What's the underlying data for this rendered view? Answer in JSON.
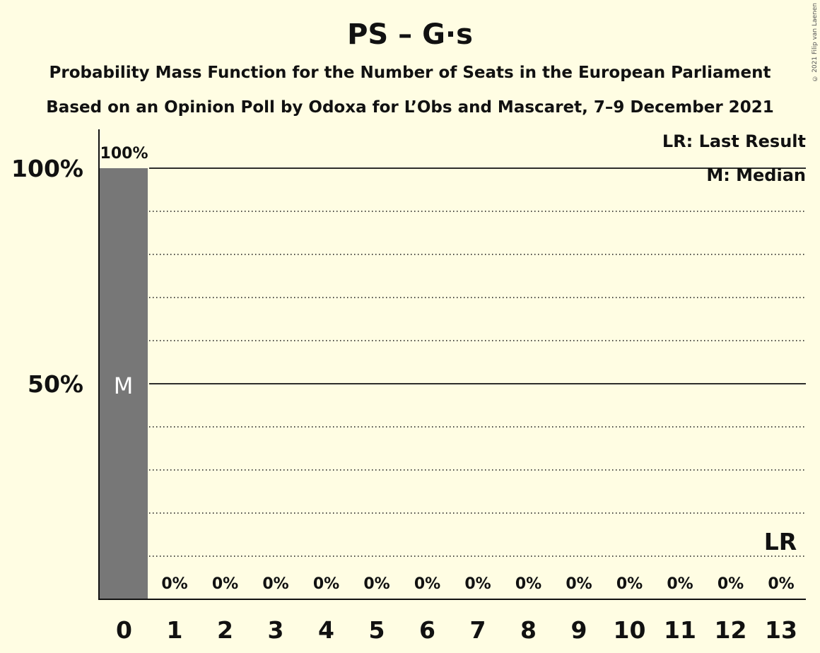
{
  "header": {
    "title": "PS – G·s",
    "subtitle": "Probability Mass Function for the Number of Seats in the European Parliament",
    "subtitle2": "Based on an Opinion Poll by Odoxa for L’Obs and Mascaret, 7–9 December 2021"
  },
  "legend": {
    "last_result": "LR: Last Result",
    "median": "M: Median"
  },
  "copyright": "© 2021 Filip van Laenen",
  "colors": {
    "background": "#fffde3",
    "bar": "#777777",
    "axis": "#111111"
  },
  "chart_data": {
    "type": "bar",
    "categories": [
      "0",
      "1",
      "2",
      "3",
      "4",
      "5",
      "6",
      "7",
      "8",
      "9",
      "10",
      "11",
      "12",
      "13"
    ],
    "values": [
      100,
      0,
      0,
      0,
      0,
      0,
      0,
      0,
      0,
      0,
      0,
      0,
      0,
      0
    ],
    "value_labels": [
      "100%",
      "0%",
      "0%",
      "0%",
      "0%",
      "0%",
      "0%",
      "0%",
      "0%",
      "0%",
      "0%",
      "0%",
      "0%",
      "0%"
    ],
    "ylim": [
      0,
      100
    ],
    "yticks": [
      50,
      100
    ],
    "ytick_labels": [
      "50%",
      "100%"
    ],
    "minor_gridlines_every": 10,
    "median_category": "0",
    "median_label": "M",
    "last_result_category": "13",
    "last_result_label": "LR"
  }
}
